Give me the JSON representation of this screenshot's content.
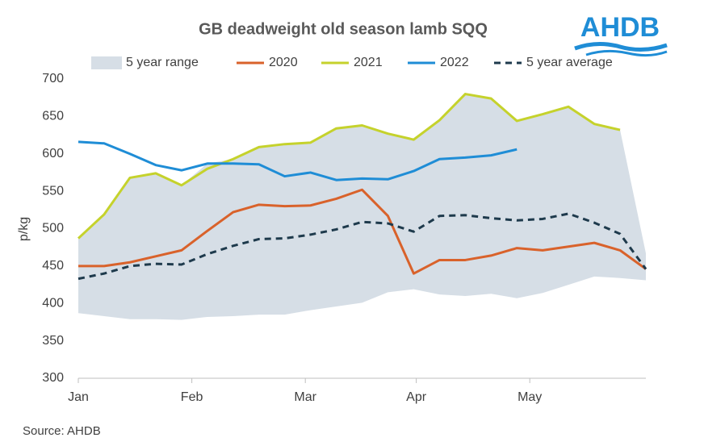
{
  "chart_data": {
    "type": "line",
    "title": "GB deadweight  old season lamb SQQ",
    "logo": "AHDB",
    "source": "Source: AHDB",
    "y_label": "p/kg",
    "x": [
      0,
      1,
      2,
      3,
      4,
      5,
      6,
      7,
      8,
      9,
      10,
      11,
      12,
      13,
      14,
      15,
      16,
      17,
      18,
      19,
      20,
      21,
      22
    ],
    "xlim": [
      0,
      22
    ],
    "xticks": [
      {
        "value": 0,
        "label": "Jan"
      },
      {
        "value": 4.4,
        "label": "Feb"
      },
      {
        "value": 8.8,
        "label": "Mar"
      },
      {
        "value": 13.1,
        "label": "Apr"
      },
      {
        "value": 17.5,
        "label": "May"
      }
    ],
    "ylim": [
      300,
      700
    ],
    "yticks": [
      300,
      350,
      400,
      450,
      500,
      550,
      600,
      650,
      700
    ],
    "grid": false,
    "range": {
      "name": "5 year range",
      "color": "#d6dee6",
      "low": [
        387,
        383,
        379,
        379,
        378,
        382,
        383,
        385,
        385,
        391,
        396,
        401,
        415,
        419,
        412,
        410,
        413,
        407,
        414,
        425,
        436,
        434,
        431
      ],
      "high": [
        487,
        519,
        568,
        574,
        558,
        587,
        593,
        609,
        613,
        615,
        634,
        638,
        627,
        619,
        645,
        680,
        674,
        644,
        653,
        663,
        640,
        632,
        467
      ]
    },
    "series": [
      {
        "name": "2020",
        "color": "#d9622b",
        "dash": false,
        "values": [
          450,
          450,
          455,
          463,
          471,
          497,
          522,
          532,
          530,
          531,
          540,
          552,
          517,
          440,
          458,
          458,
          464,
          474,
          471,
          476,
          481,
          471,
          446
        ]
      },
      {
        "name": "2021",
        "color": "#c5d22c",
        "dash": false,
        "values": [
          487,
          519,
          568,
          574,
          558,
          580,
          593,
          609,
          613,
          615,
          634,
          638,
          627,
          619,
          645,
          680,
          674,
          644,
          653,
          663,
          640,
          632,
          null
        ]
      },
      {
        "name": "2022",
        "color": "#1f8dd6",
        "dash": false,
        "values": [
          616,
          614,
          600,
          585,
          578,
          587,
          587,
          586,
          570,
          575,
          565,
          567,
          566,
          577,
          593,
          595,
          598,
          606,
          null,
          null,
          null,
          null,
          null
        ]
      },
      {
        "name": "5 year average",
        "color": "#1e3a4c",
        "dash": true,
        "values": [
          433,
          440,
          450,
          453,
          452,
          466,
          477,
          486,
          487,
          492,
          499,
          509,
          507,
          496,
          517,
          518,
          514,
          511,
          513,
          520,
          508,
          493,
          446
        ]
      }
    ]
  }
}
